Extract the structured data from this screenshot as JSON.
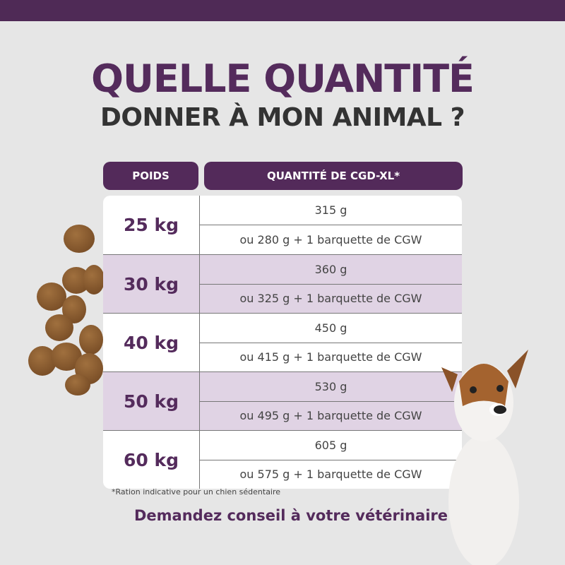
{
  "title": {
    "line1": "QUELLE QUANTITÉ",
    "line2": "DONNER À MON ANIMAL ?"
  },
  "table": {
    "headers": [
      "POIDS",
      "QUANTITÉ DE CGD-XL*"
    ],
    "rows": [
      {
        "weight": "25 kg",
        "amount": "315 g",
        "alt": "ou 280 g + 1 barquette de CGW"
      },
      {
        "weight": "30 kg",
        "amount": "360 g",
        "alt": "ou 325 g + 1 barquette de CGW"
      },
      {
        "weight": "40 kg",
        "amount": "450 g",
        "alt": "ou 415 g + 1 barquette de CGW"
      },
      {
        "weight": "50 kg",
        "amount": "530 g",
        "alt": "ou 495 g + 1 barquette de CGW"
      },
      {
        "weight": "60 kg",
        "amount": "605 g",
        "alt": "ou 575 g + 1 barquette de CGW"
      }
    ]
  },
  "footnote": "*Ration indicative pour un chien sédentaire",
  "cta": "Demandez conseil à votre vétérinaire",
  "colors": {
    "brand": "#532a5a",
    "row_alt": "#e0d3e4",
    "background": "#e6e6e6"
  }
}
